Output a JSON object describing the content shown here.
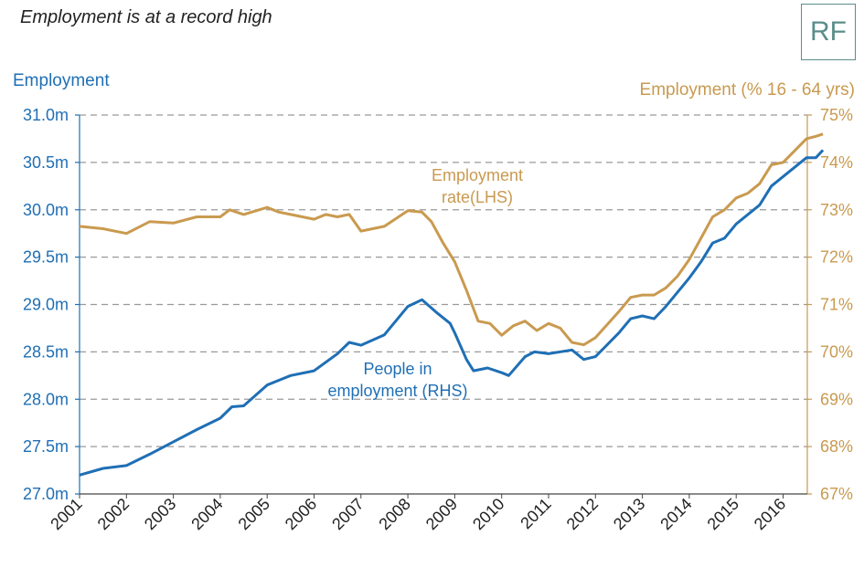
{
  "title": "Employment is at a record high",
  "logo": "RF",
  "left_axis_title": "Employment",
  "right_axis_title": "Employment (% 16 - 64 yrs)",
  "colors": {
    "employment": "#1f6fb5",
    "rate": "#c99a4f",
    "grid": "#999999"
  },
  "chart_data": {
    "type": "line",
    "grid": true,
    "x_labels": [
      "2001",
      "2002",
      "2003",
      "2004",
      "2005",
      "2006",
      "2007",
      "2008",
      "2009",
      "2010",
      "2011",
      "2012",
      "2013",
      "2014",
      "2015",
      "2016"
    ],
    "x_range": [
      2001,
      2016.85
    ],
    "left_axis": {
      "title": "Employment",
      "ticks": [
        "27.0m",
        "27.5m",
        "28.0m",
        "28.5m",
        "29.0m",
        "29.5m",
        "30.0m",
        "30.5m",
        "31.0m"
      ],
      "range": [
        27.0,
        31.0
      ]
    },
    "right_axis": {
      "title": "Employment (% 16 - 64 yrs)",
      "ticks": [
        "67%",
        "68%",
        "69%",
        "70%",
        "71%",
        "72%",
        "73%",
        "74%",
        "75%"
      ],
      "range": [
        67,
        75
      ]
    },
    "series": [
      {
        "name": "People in employment (RHS)",
        "label_lines": [
          "People in",
          "employment (RHS)"
        ],
        "axis": "left",
        "color": "#1f6fb5",
        "points": [
          [
            2001.0,
            27.2
          ],
          [
            2001.5,
            27.27
          ],
          [
            2002.0,
            27.3
          ],
          [
            2002.5,
            27.42
          ],
          [
            2003.0,
            27.55
          ],
          [
            2003.5,
            27.68
          ],
          [
            2004.0,
            27.8
          ],
          [
            2004.25,
            27.92
          ],
          [
            2004.5,
            27.93
          ],
          [
            2005.0,
            28.15
          ],
          [
            2005.25,
            28.2
          ],
          [
            2005.5,
            28.25
          ],
          [
            2006.0,
            28.3
          ],
          [
            2006.5,
            28.48
          ],
          [
            2006.75,
            28.6
          ],
          [
            2007.0,
            28.57
          ],
          [
            2007.5,
            28.68
          ],
          [
            2008.0,
            28.98
          ],
          [
            2008.3,
            29.05
          ],
          [
            2008.6,
            28.92
          ],
          [
            2008.9,
            28.8
          ],
          [
            2009.0,
            28.7
          ],
          [
            2009.25,
            28.42
          ],
          [
            2009.4,
            28.3
          ],
          [
            2009.7,
            28.33
          ],
          [
            2010.0,
            28.28
          ],
          [
            2010.15,
            28.25
          ],
          [
            2010.5,
            28.45
          ],
          [
            2010.7,
            28.5
          ],
          [
            2011.0,
            28.48
          ],
          [
            2011.5,
            28.52
          ],
          [
            2011.75,
            28.42
          ],
          [
            2012.0,
            28.45
          ],
          [
            2012.5,
            28.7
          ],
          [
            2012.75,
            28.85
          ],
          [
            2013.0,
            28.88
          ],
          [
            2013.25,
            28.85
          ],
          [
            2013.5,
            28.98
          ],
          [
            2014.0,
            29.28
          ],
          [
            2014.25,
            29.45
          ],
          [
            2014.5,
            29.65
          ],
          [
            2014.75,
            29.7
          ],
          [
            2015.0,
            29.85
          ],
          [
            2015.25,
            29.95
          ],
          [
            2015.5,
            30.05
          ],
          [
            2015.75,
            30.25
          ],
          [
            2016.0,
            30.35
          ],
          [
            2016.25,
            30.45
          ],
          [
            2016.5,
            30.55
          ],
          [
            2016.7,
            30.55
          ],
          [
            2016.85,
            30.63
          ]
        ]
      },
      {
        "name": "Employment rate(LHS)",
        "label_lines": [
          "Employment",
          "rate(LHS)"
        ],
        "axis": "right",
        "color": "#c99a4f",
        "points": [
          [
            2001.0,
            72.65
          ],
          [
            2001.5,
            72.6
          ],
          [
            2002.0,
            72.5
          ],
          [
            2002.5,
            72.75
          ],
          [
            2003.0,
            72.72
          ],
          [
            2003.5,
            72.85
          ],
          [
            2004.0,
            72.85
          ],
          [
            2004.2,
            73.0
          ],
          [
            2004.5,
            72.9
          ],
          [
            2005.0,
            73.05
          ],
          [
            2005.25,
            72.95
          ],
          [
            2005.5,
            72.9
          ],
          [
            2006.0,
            72.8
          ],
          [
            2006.25,
            72.9
          ],
          [
            2006.5,
            72.85
          ],
          [
            2006.75,
            72.9
          ],
          [
            2007.0,
            72.55
          ],
          [
            2007.5,
            72.65
          ],
          [
            2008.0,
            72.98
          ],
          [
            2008.3,
            72.95
          ],
          [
            2008.5,
            72.75
          ],
          [
            2008.75,
            72.3
          ],
          [
            2009.0,
            71.9
          ],
          [
            2009.25,
            71.3
          ],
          [
            2009.5,
            70.65
          ],
          [
            2009.75,
            70.6
          ],
          [
            2010.0,
            70.35
          ],
          [
            2010.25,
            70.55
          ],
          [
            2010.5,
            70.65
          ],
          [
            2010.75,
            70.45
          ],
          [
            2011.0,
            70.6
          ],
          [
            2011.25,
            70.5
          ],
          [
            2011.5,
            70.2
          ],
          [
            2011.75,
            70.15
          ],
          [
            2012.0,
            70.3
          ],
          [
            2012.5,
            70.85
          ],
          [
            2012.75,
            71.15
          ],
          [
            2013.0,
            71.2
          ],
          [
            2013.25,
            71.2
          ],
          [
            2013.5,
            71.35
          ],
          [
            2013.75,
            71.6
          ],
          [
            2014.0,
            71.95
          ],
          [
            2014.25,
            72.4
          ],
          [
            2014.5,
            72.85
          ],
          [
            2014.75,
            73.0
          ],
          [
            2015.0,
            73.25
          ],
          [
            2015.25,
            73.35
          ],
          [
            2015.5,
            73.55
          ],
          [
            2015.75,
            73.95
          ],
          [
            2016.0,
            74.0
          ],
          [
            2016.25,
            74.25
          ],
          [
            2016.5,
            74.5
          ],
          [
            2016.7,
            74.55
          ],
          [
            2016.85,
            74.6
          ]
        ]
      }
    ]
  }
}
